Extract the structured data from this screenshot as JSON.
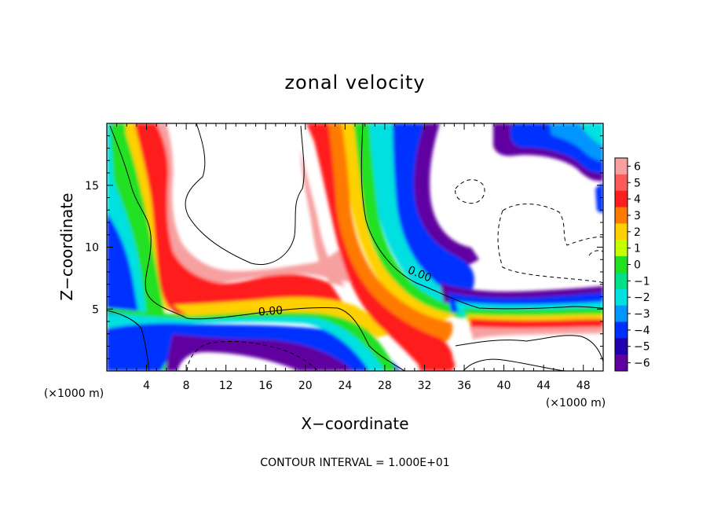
{
  "chart_data": {
    "type": "heatmap",
    "title": "zonal velocity",
    "xlabel": "X−coordinate",
    "ylabel": "Z−coordinate",
    "x_unit": "(×1000 m)",
    "y_unit": "(×1000 m)",
    "xlim": [
      0,
      50
    ],
    "ylim": [
      0,
      20
    ],
    "x_ticks": [
      4,
      8,
      12,
      16,
      20,
      24,
      28,
      32,
      36,
      40,
      44,
      48
    ],
    "y_ticks": [
      5,
      10,
      15
    ],
    "colorbar": {
      "ticks": [
        6,
        5,
        4,
        3,
        2,
        1,
        0,
        -1,
        -2,
        -3,
        -4,
        -5,
        -6
      ],
      "labels": [
        "6",
        "5",
        "4",
        "3",
        "2",
        "1",
        "0",
        "−1",
        "−2",
        "−3",
        "−4",
        "−5",
        "−6"
      ],
      "colors": [
        "#f7a0a0",
        "#ff5a5a",
        "#ff1e1e",
        "#ff7a00",
        "#ffd000",
        "#c8ff00",
        "#20e020",
        "#00e08a",
        "#00e0e0",
        "#0095ff",
        "#0030ff",
        "#2000b0",
        "#6000a0"
      ]
    },
    "contour_labels": [
      {
        "text": "0.00",
        "x": 16.5,
        "z": 4.8
      },
      {
        "text": "0.00",
        "x": 31.5,
        "z": 7.8
      }
    ],
    "note": "CONTOUR INTERVAL = 1.000E+01"
  }
}
